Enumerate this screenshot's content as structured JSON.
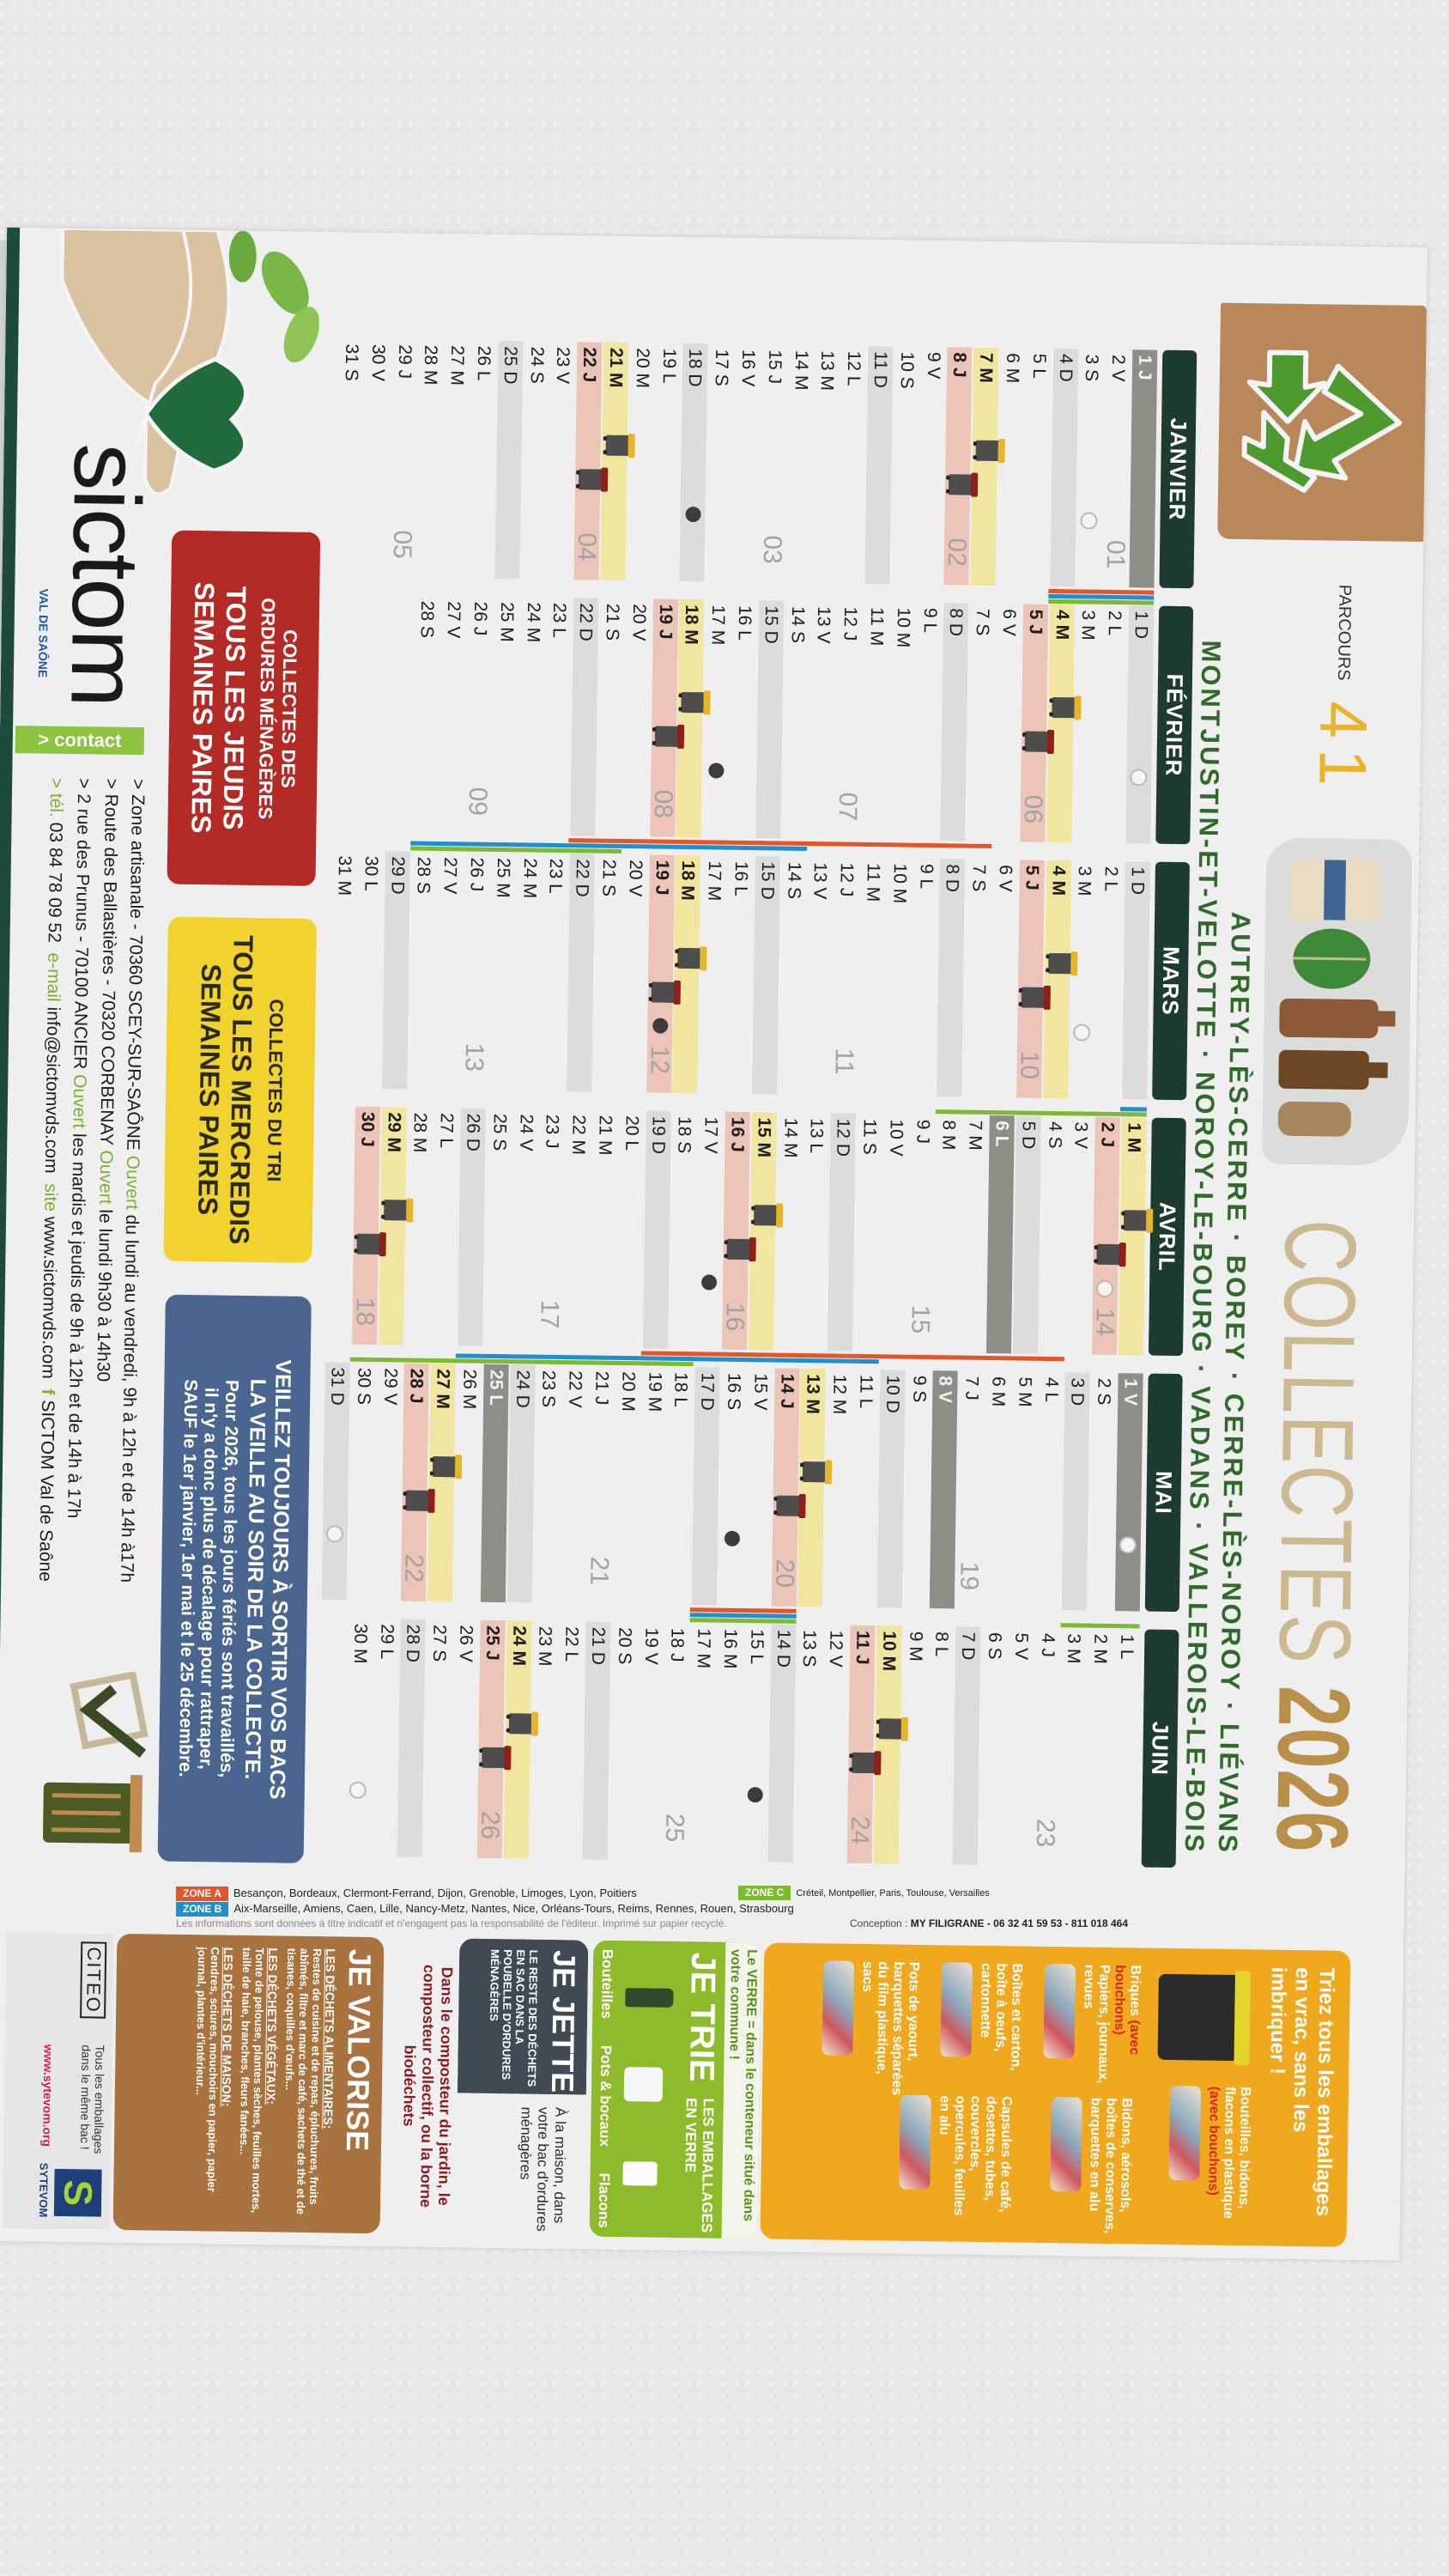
{
  "header": {
    "parcours_label": "PARCOURS",
    "parcours_number": "41",
    "title_word": "COLLECTES",
    "title_year": "2026",
    "communes_line1": "AUTREY-LÈS-CERRE · BOREY · CERRE-LÈS-NOROY · LIÉVANS",
    "communes_line2": "MONTJUSTIN-ET-VELOTTE · NOROY-LE-BOURG · VADANS · VALLEROIS-LE-BOIS"
  },
  "colors": {
    "month_tab": "#1d3b2e",
    "tri_day": "#f1e6a0",
    "om_day": "#ecc5b8",
    "sunday": "#dcdcdc",
    "holiday": "#8e8e86",
    "zone_a": "#e2562a",
    "zone_b": "#1f8fd0",
    "zone_c": "#7dba2f",
    "om_box": "#b42a24",
    "tri_box": "#f1d22e",
    "info_box": "#4a6690"
  },
  "calendar": {
    "legend": {
      "tri_bin_icon": "yellow-lid-bin",
      "om_bin_icon": "red-lid-bin",
      "full_moon_icon": "open-circle",
      "new_moon_icon": "filled-dot"
    },
    "months": [
      {
        "name": "JANVIER",
        "days": [
          "1 J",
          "2 V",
          "3 S",
          "4 D",
          "5 L",
          "6 M",
          "7 M",
          "8 J",
          "9 V",
          "10 S",
          "11 D",
          "12 L",
          "13 M",
          "14 M",
          "15 J",
          "16 V",
          "17 S",
          "18 D",
          "19 L",
          "20 M",
          "21 M",
          "22 J",
          "23 V",
          "24 S",
          "25 D",
          "26 L",
          "27 M",
          "28 M",
          "29 J",
          "30 V",
          "31 S"
        ],
        "tri": [
          7,
          21
        ],
        "om": [
          8,
          22
        ],
        "holidays": [
          1
        ],
        "weeks": [
          {
            "day": 2,
            "label": "01"
          },
          {
            "day": 8,
            "label": "02"
          },
          {
            "day": 15,
            "label": "03"
          },
          {
            "day": 22,
            "label": "04"
          },
          {
            "day": 29,
            "label": "05"
          }
        ],
        "moons": [
          {
            "day": 3,
            "type": "full"
          },
          {
            "day": 18,
            "type": "new"
          }
        ],
        "vacations": [
          {
            "zone": "A",
            "from": 1,
            "to": 4
          },
          {
            "zone": "B",
            "from": 1,
            "to": 4
          },
          {
            "zone": "C",
            "from": 1,
            "to": 4
          }
        ]
      },
      {
        "name": "FÉVRIER",
        "days": [
          "1 D",
          "2 L",
          "3 M",
          "4 M",
          "5 J",
          "6 V",
          "7 S",
          "8 D",
          "9 L",
          "10 M",
          "11 M",
          "12 J",
          "13 V",
          "14 S",
          "15 D",
          "16 L",
          "17 M",
          "18 M",
          "19 J",
          "20 V",
          "21 S",
          "22 D",
          "23 L",
          "24 M",
          "25 M",
          "26 J",
          "27 V",
          "28 S"
        ],
        "tri": [
          4,
          18
        ],
        "om": [
          5,
          19
        ],
        "holidays": [],
        "weeks": [
          {
            "day": 5,
            "label": "06"
          },
          {
            "day": 12,
            "label": "07"
          },
          {
            "day": 19,
            "label": "08"
          },
          {
            "day": 26,
            "label": "09"
          }
        ],
        "moons": [
          {
            "day": 1,
            "type": "full"
          },
          {
            "day": 17,
            "type": "new"
          }
        ],
        "vacations": [
          {
            "zone": "A",
            "from": 7,
            "to": 22
          },
          {
            "zone": "B",
            "from": 14,
            "to": 28
          },
          {
            "zone": "C",
            "from": 21,
            "to": 28
          }
        ]
      },
      {
        "name": "MARS",
        "days": [
          "1 D",
          "2 L",
          "3 M",
          "4 M",
          "5 J",
          "6 V",
          "7 S",
          "8 D",
          "9 L",
          "10 M",
          "11 M",
          "12 J",
          "13 V",
          "14 S",
          "15 D",
          "16 L",
          "17 M",
          "18 M",
          "19 J",
          "20 V",
          "21 S",
          "22 D",
          "23 L",
          "24 M",
          "25 M",
          "26 J",
          "27 V",
          "28 S",
          "29 D",
          "30 L",
          "31 M"
        ],
        "tri": [
          4,
          18
        ],
        "om": [
          5,
          19
        ],
        "holidays": [],
        "weeks": [
          {
            "day": 5,
            "label": "10"
          },
          {
            "day": 12,
            "label": "11"
          },
          {
            "day": 19,
            "label": "12"
          },
          {
            "day": 26,
            "label": "13"
          }
        ],
        "moons": [
          {
            "day": 3,
            "type": "full"
          },
          {
            "day": 19,
            "type": "new"
          }
        ],
        "vacations": [
          {
            "zone": "B",
            "from": 1,
            "to": 1
          },
          {
            "zone": "C",
            "from": 1,
            "to": 8
          }
        ]
      },
      {
        "name": "AVRIL",
        "days": [
          "1 M",
          "2 J",
          "3 V",
          "4 S",
          "5 D",
          "6 L",
          "7 M",
          "8 M",
          "9 J",
          "10 V",
          "11 S",
          "12 D",
          "13 L",
          "14 M",
          "15 M",
          "16 J",
          "17 V",
          "18 S",
          "19 D",
          "20 L",
          "21 M",
          "22 M",
          "23 J",
          "24 V",
          "25 S",
          "26 D",
          "27 L",
          "28 M",
          "29 M",
          "30 J"
        ],
        "tri": [
          1,
          15,
          29
        ],
        "om": [
          2,
          16,
          30
        ],
        "holidays": [
          6
        ],
        "weeks": [
          {
            "day": 2,
            "label": "14"
          },
          {
            "day": 9,
            "label": "15"
          },
          {
            "day": 16,
            "label": "16"
          },
          {
            "day": 23,
            "label": "17"
          },
          {
            "day": 30,
            "label": "18"
          }
        ],
        "moons": [
          {
            "day": 2,
            "type": "full"
          },
          {
            "day": 17,
            "type": "new"
          }
        ],
        "vacations": [
          {
            "zone": "A",
            "from": 4,
            "to": 19
          },
          {
            "zone": "B",
            "from": 11,
            "to": 26
          },
          {
            "zone": "C",
            "from": 18,
            "to": 30
          }
        ]
      },
      {
        "name": "MAI",
        "days": [
          "1 V",
          "2 S",
          "3 D",
          "4 L",
          "5 M",
          "6 M",
          "7 J",
          "8 V",
          "9 S",
          "10 D",
          "11 L",
          "12 M",
          "13 M",
          "14 J",
          "15 V",
          "16 S",
          "17 D",
          "18 L",
          "19 M",
          "20 M",
          "21 J",
          "22 V",
          "23 S",
          "24 D",
          "25 L",
          "26 M",
          "27 M",
          "28 J",
          "29 V",
          "30 S",
          "31 D"
        ],
        "tri": [
          13,
          27
        ],
        "om": [
          14,
          28
        ],
        "holidays": [
          1,
          8,
          25
        ],
        "weeks": [
          {
            "day": 7,
            "label": "19"
          },
          {
            "day": 14,
            "label": "20"
          },
          {
            "day": 21,
            "label": "21"
          },
          {
            "day": 28,
            "label": "22"
          }
        ],
        "moons": [
          {
            "day": 1,
            "type": "full"
          },
          {
            "day": 16,
            "type": "new"
          },
          {
            "day": 31,
            "type": "full"
          }
        ],
        "vacations": [
          {
            "zone": "C",
            "from": 1,
            "to": 3
          },
          {
            "zone": "A",
            "from": 14,
            "to": 17
          },
          {
            "zone": "B",
            "from": 14,
            "to": 17
          },
          {
            "zone": "C",
            "from": 14,
            "to": 17
          }
        ]
      },
      {
        "name": "JUIN",
        "days": [
          "1 L",
          "2 M",
          "3 M",
          "4 J",
          "5 V",
          "6 S",
          "7 D",
          "8 L",
          "9 M",
          "10 M",
          "11 J",
          "12 V",
          "13 S",
          "14 D",
          "15 L",
          "16 M",
          "17 M",
          "18 J",
          "19 V",
          "20 S",
          "21 D",
          "22 L",
          "23 M",
          "24 M",
          "25 J",
          "26 V",
          "27 S",
          "28 D",
          "29 L",
          "30 M"
        ],
        "tri": [
          10,
          24
        ],
        "om": [
          11,
          25
        ],
        "holidays": [],
        "weeks": [
          {
            "day": 4,
            "label": "23"
          },
          {
            "day": 11,
            "label": "24"
          },
          {
            "day": 18,
            "label": "25"
          },
          {
            "day": 25,
            "label": "26"
          }
        ],
        "moons": [
          {
            "day": 15,
            "type": "new"
          },
          {
            "day": 30,
            "type": "full"
          }
        ],
        "vacations": []
      }
    ]
  },
  "boxes": {
    "om": {
      "title1": "COLLECTES DES",
      "title2": "ORDURES MÉNAGÈRES",
      "when1": "TOUS LES JEUDIS",
      "when2": "SEMAINES PAIRES"
    },
    "tri": {
      "title": "COLLECTES DU TRI",
      "when1": "TOUS LES MERCREDIS",
      "when2": "SEMAINES PAIRES"
    },
    "info": {
      "title1": "VEILLEZ TOUJOURS À SORTIR VOS BACS",
      "title2": "LA VEILLE AU SOIR DE LA COLLECTE.",
      "text1": "Pour 2026, tous les jours fériés sont travaillés,",
      "text2": "il n'y a donc plus de décalage pour rattraper,",
      "text3": "SAUF le 1er janvier, 1er mai et le 25 décembre."
    }
  },
  "logo": {
    "name": "sictom",
    "sub": "VAL DE SAÔNE"
  },
  "contact": {
    "badge": "> contact",
    "lines": [
      {
        "addr": "> Zone artisanale - 70360 SCEY-SUR-SAÔNE",
        "open": "Ouvert",
        "hours": "du lundi au vendredi, 9h à 12h et de 14h à17h"
      },
      {
        "addr": "> Route des Ballastières - 70320 CORBENAY",
        "open": "Ouvert",
        "hours": "le lundi 9h30 à 14h30"
      },
      {
        "addr": "> 2 rue des Prunus - 70100 ANCIER",
        "open": "Ouvert",
        "hours": "les mardis et jeudis de 9h à 12h et de 14h à 17h"
      }
    ],
    "tel_label": "> tél.",
    "tel": "03 84 78 09 52",
    "email_label": "e-mail",
    "email": "info@sictomvds.com",
    "site_label": "site",
    "site": "www.sictomvds.com",
    "facebook_label": "f",
    "facebook": "SICTOM Val de Saône"
  },
  "zones": {
    "a": {
      "tag": "ZONE A",
      "cities": "Besançon, Bordeaux, Clermont-Ferrand, Dijon, Grenoble, Limoges, Lyon, Poitiers"
    },
    "b": {
      "tag": "ZONE B",
      "cities": "Aix-Marseille, Amiens, Caen, Lille, Nancy-Metz, Nantes, Nice, Orléans-Tours, Reims, Rennes, Rouen, Strasbourg"
    },
    "c": {
      "tag": "ZONE C",
      "cities": "Créteil, Montpellier, Paris, Toulouse, Versailles"
    },
    "disclaimer": "Les informations sont données à titre indicatif et n'engagent pas la responsabilité de l'éditeur. Imprimé sur papier recyclé.",
    "conception_label": "Conception :",
    "conception": "MY FILIGRANE - 06 32 41 59 53 - 811 018 464"
  },
  "sorting": {
    "yellow": {
      "title": "Triez tous les emballages en vrac, sans les imbriquer !",
      "items": [
        {
          "text": "Bouteilles, bidons, flacons en plastique",
          "note": "(avec bouchons)"
        },
        {
          "text": "Briques",
          "note": "(avec bouchons)",
          "text2": "Papiers, journaux, revues"
        },
        {
          "text": "Bidons, aérosols, boîtes de conserves, barquettes en alu"
        },
        {
          "text": "Boîtes et carton, boîte à oeufs, cartonnette"
        },
        {
          "text": "Pots de yaourt, barquettes séparées du film plastique, sacs"
        },
        {
          "text": "Capsules de café, dosettes, tubes, couvercles, opercules, feuilles en alu"
        }
      ]
    },
    "green": {
      "note": "Le VERRE = dans le conteneur situé dans votre commune !",
      "title": "JE TRIE",
      "subtitle": "LES EMBALLAGES EN VERRE",
      "items": [
        "Bouteilles",
        "Pots & bocaux",
        "Flacons"
      ]
    },
    "dark": {
      "title": "JE JETTE",
      "subtitle": "LE RESTE DES DÉCHETS EN SAC DANS LA POUBELLE D'ORDURES MÉNAGÈRES",
      "note": "À la maison, dans votre bac d'ordures ménagères"
    },
    "compost_note": "Dans le composteur du jardin, le composteur collectif, ou la borne biodéchets",
    "brown": {
      "title": "JE VALORISE",
      "sections": [
        {
          "head": "LES DÉCHETS ALIMENTAIRES:",
          "text": "Restes de cuisine et de repas, épluchures, fruits abîmés, filtre et marc de café, sachets de thé et de tisanes, coquilles d'œufs..."
        },
        {
          "head": "LES DÉCHETS VÉGÉTAUX:",
          "text": "Tonte de pelouse, plantes sèches, feuilles mortes, taille de haie, branches, fleurs fanées..."
        },
        {
          "head": "LES DÉCHETS DE MAISON:",
          "text": "Cendres, sciures, mouchoirs en papier, papier journal, plantes d'intérieur..."
        }
      ]
    },
    "footer": {
      "citeo": "CITEO",
      "slogan": "Tous les emballages dans le même bac !",
      "url": "www.sytevom.org",
      "sytevom": "SYTEVOM"
    }
  }
}
